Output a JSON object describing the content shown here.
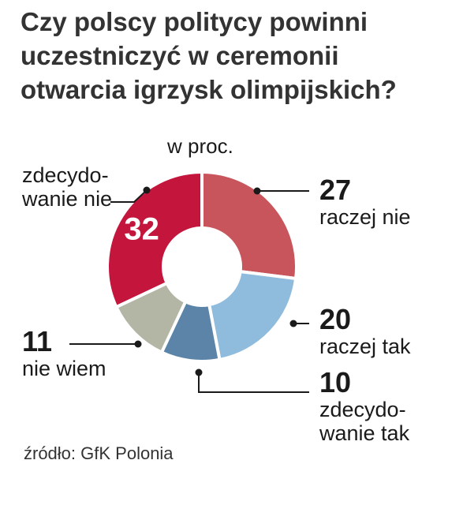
{
  "title_lines": [
    "Czy polscy politycy powinni",
    "uczestniczyć w ceremonii",
    "otwarcia igrzysk olimpijskich?"
  ],
  "unit_label": "w proc.",
  "source": "źródło: GfK Polonia",
  "chart_data": {
    "type": "pie",
    "style": "donut",
    "title": "Czy polscy politycy powinni uczestniczyć w ceremonii otwarcia igrzysk olimpijskich?",
    "unit": "w proc.",
    "slices": [
      {
        "label_lines": [
          "raczej nie"
        ],
        "value": 27,
        "value_text": "27",
        "color": "#c9555c"
      },
      {
        "label_lines": [
          "raczej tak"
        ],
        "value": 20,
        "value_text": "20",
        "color": "#8fbbdc"
      },
      {
        "label_lines": [
          "zdecydo-",
          "wanie tak"
        ],
        "value": 10,
        "value_text": "10",
        "color": "#5b84a8"
      },
      {
        "label_lines": [
          "nie wiem"
        ],
        "value": 11,
        "value_text": "11",
        "color": "#b3b5a5"
      },
      {
        "label_lines": [
          "zdecydo-",
          "wanie nie"
        ],
        "value": 32,
        "value_text": "32",
        "color": "#c4163c"
      }
    ],
    "legend": "none"
  }
}
